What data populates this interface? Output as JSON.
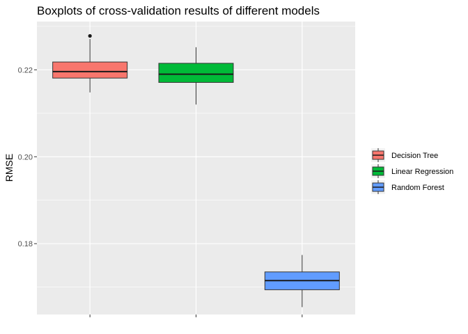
{
  "chart_data": {
    "type": "boxplot",
    "title": "Boxplots of cross-validation results of different models",
    "xlabel": "",
    "ylabel": "RMSE",
    "ylim": [
      0.1637,
      0.2311
    ],
    "yticks": [
      0.18,
      0.2,
      0.22
    ],
    "ytick_labels": [
      "0.18",
      "0.20",
      "0.22"
    ],
    "grid": true,
    "legend_position": "right",
    "series": [
      {
        "name": "Decision Tree",
        "color": "#F8766D",
        "min": 0.2148,
        "q1": 0.2181,
        "median": 0.2196,
        "q3": 0.2218,
        "max": 0.2271,
        "outliers": [
          0.2278
        ]
      },
      {
        "name": "Linear Regression",
        "color": "#00BA38",
        "min": 0.212,
        "q1": 0.2171,
        "median": 0.219,
        "q3": 0.2215,
        "max": 0.2252,
        "outliers": []
      },
      {
        "name": "Random Forest",
        "color": "#619CFF",
        "min": 0.1654,
        "q1": 0.1694,
        "median": 0.1715,
        "q3": 0.1735,
        "max": 0.1774,
        "outliers": []
      }
    ]
  }
}
